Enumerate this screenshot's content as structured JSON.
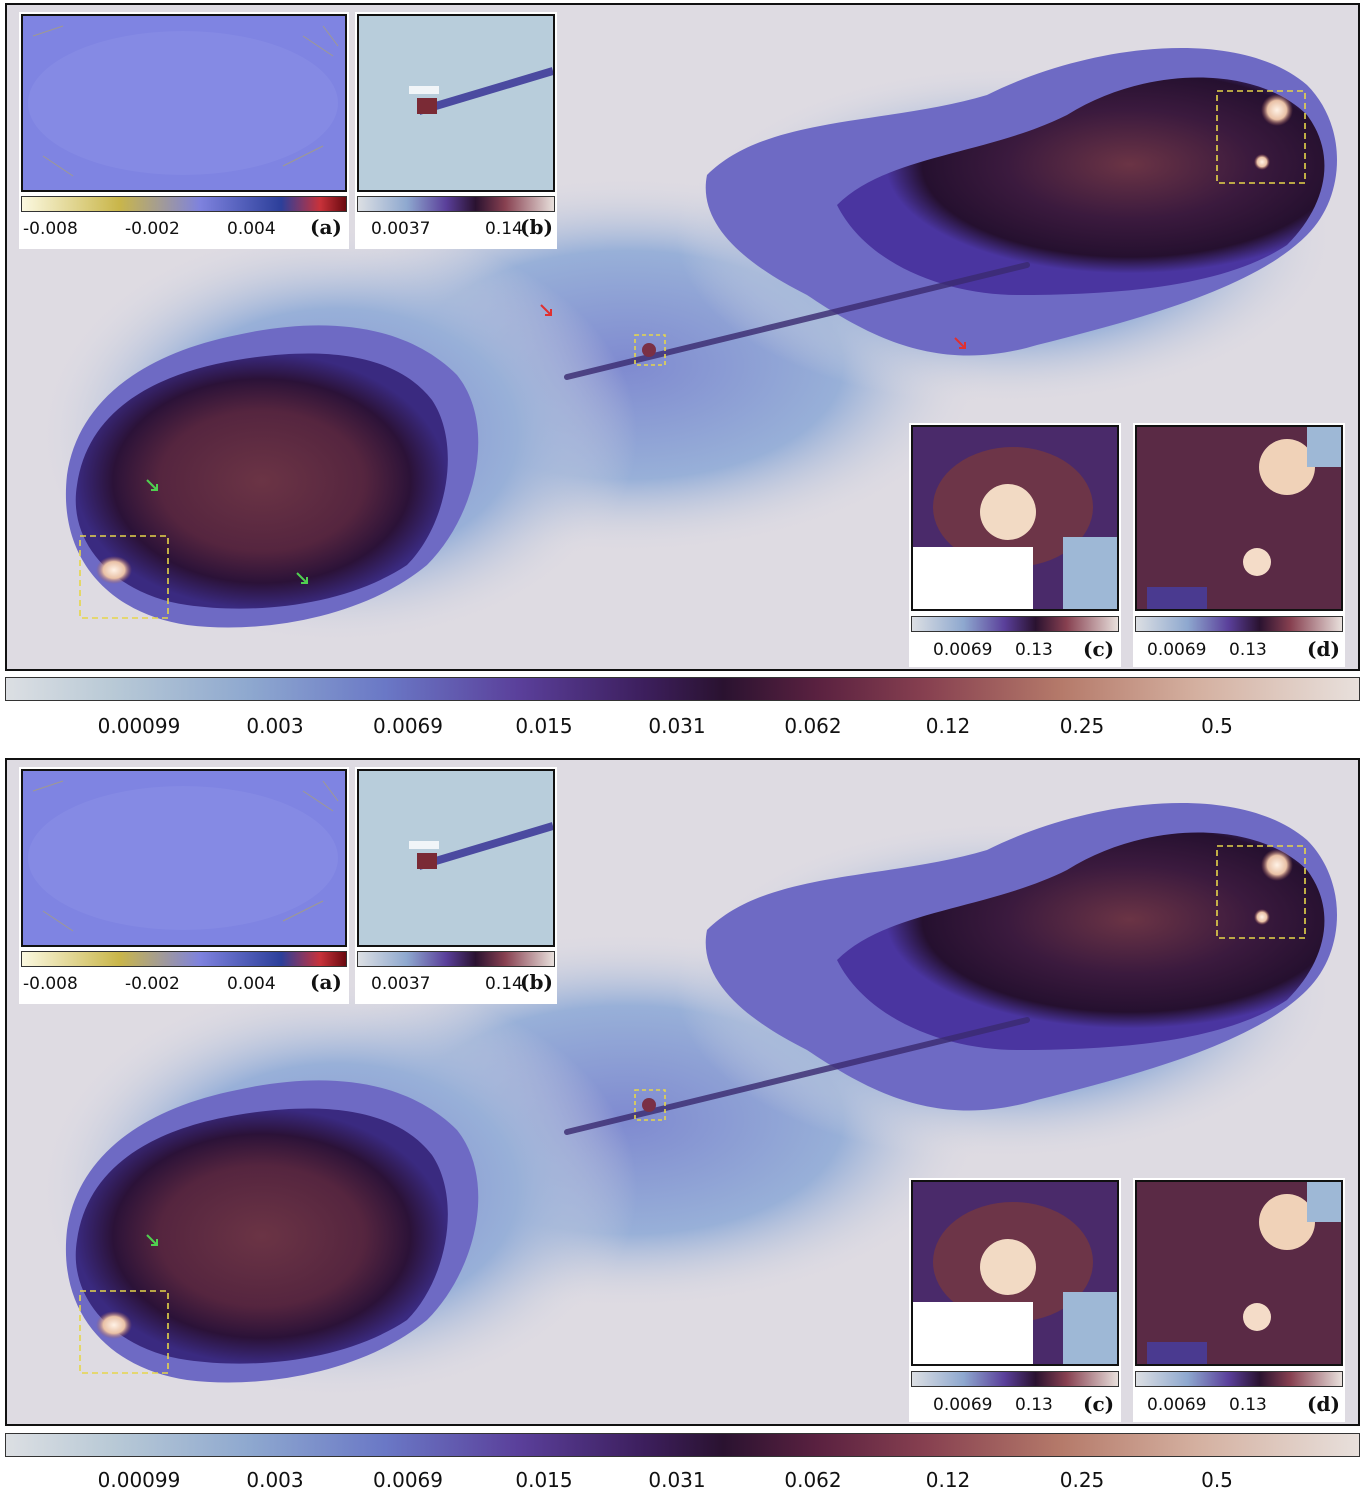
{
  "panels": [
    {
      "name": "top",
      "insets": {
        "a": {
          "label": "(a)",
          "ticks": [
            "-0.008",
            "-0.002",
            "0.004"
          ]
        },
        "b": {
          "label": "(b)",
          "ticks": [
            "0.0037",
            "0.14"
          ]
        },
        "c": {
          "label": "(c)",
          "ticks": [
            "0.0069",
            "0.13"
          ]
        },
        "d": {
          "label": "(d)",
          "ticks": [
            "0.0069",
            "0.13"
          ]
        }
      }
    },
    {
      "name": "bottom",
      "insets": {
        "a": {
          "label": "(a)",
          "ticks": [
            "-0.008",
            "-0.002",
            "0.004"
          ]
        },
        "b": {
          "label": "(b)",
          "ticks": [
            "0.0037",
            "0.14"
          ]
        },
        "c": {
          "label": "(c)",
          "ticks": [
            "0.0069",
            "0.13"
          ]
        },
        "d": {
          "label": "(d)",
          "ticks": [
            "0.0069",
            "0.13"
          ]
        }
      }
    }
  ],
  "colorbar_ticks": [
    "0.00099",
    "0.003",
    "0.0069",
    "0.015",
    "0.031",
    "0.062",
    "0.12",
    "0.25",
    "0.5"
  ],
  "colors": {
    "background": "#dedbe2",
    "faint_emission": "#a9c0d6",
    "mid_emission": "#6f6cc4",
    "lobe_dark": "#2b1235",
    "lobe_core": "#6a3040",
    "hotspot": "#f4ddc8",
    "residual": "#8085e0",
    "box_outline": "#e6d64a",
    "arrow_red": "#e03030",
    "arrow_green": "#50d050"
  }
}
